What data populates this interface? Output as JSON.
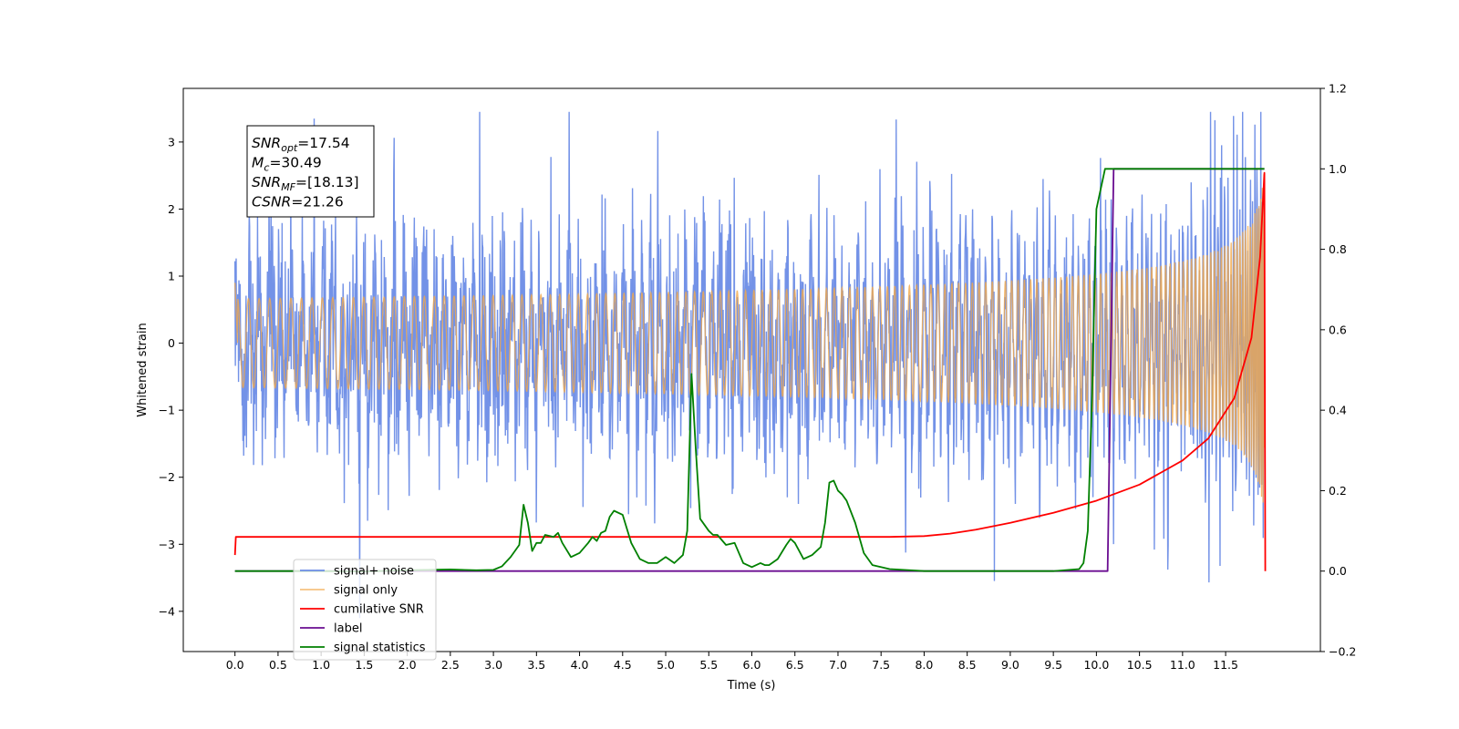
{
  "chart_data": {
    "type": "line",
    "xlabel": "Time (s)",
    "ylabel": "Whitened strain",
    "xlim": [
      -0.6,
      12.6
    ],
    "ylim_left": [
      -4.6,
      3.8
    ],
    "ylim_right": [
      -0.2,
      1.2
    ],
    "x_ticks": [
      0.0,
      0.5,
      1.0,
      1.5,
      2.0,
      2.5,
      3.0,
      3.5,
      4.0,
      4.5,
      5.0,
      5.5,
      6.0,
      6.5,
      7.0,
      7.5,
      8.0,
      8.5,
      9.0,
      9.5,
      10.0,
      10.5,
      11.0,
      11.5
    ],
    "x_tick_labels": [
      "0.0",
      "0.5",
      "1.0",
      "1.5",
      "2.0",
      "2.5",
      "3.0",
      "3.5",
      "4.0",
      "4.5",
      "5.0",
      "5.5",
      "6.0",
      "6.5",
      "7.0",
      "7.5",
      "8.0",
      "8.5",
      "9.0",
      "9.5",
      "10.0",
      "10.5",
      "11.0",
      "11.5"
    ],
    "y_left_ticks": [
      -4,
      -3,
      -2,
      -1,
      0,
      1,
      2,
      3
    ],
    "y_left_tick_labels": [
      "−4",
      "−3",
      "−2",
      "−1",
      "0",
      "1",
      "2",
      "3"
    ],
    "y_right_ticks": [
      -0.2,
      0.0,
      0.2,
      0.4,
      0.6,
      0.8,
      1.0,
      1.2
    ],
    "y_right_tick_labels": [
      "−0.2",
      "0.0",
      "0.2",
      "0.4",
      "0.6",
      "0.8",
      "1.0",
      "1.2"
    ],
    "grid": false,
    "legend_placement": "lower-left",
    "annotation": {
      "lines": [
        {
          "symbol": "SNR",
          "sub": "opt",
          "value": "=17.54"
        },
        {
          "symbol": "M",
          "sub": "c",
          "value": "=30.49"
        },
        {
          "symbol": "SNR",
          "sub": "MF",
          "value": "=[18.13]"
        },
        {
          "symbol": "CSNR",
          "sub": "",
          "value": "=21.26"
        }
      ]
    },
    "series": [
      {
        "name": "signal+ noise",
        "color": "#6b8ce6",
        "axis": "left",
        "kind": "noise",
        "x_range": [
          0.0,
          11.95
        ],
        "sigma": 0.75,
        "envelope_end": 2.6
      },
      {
        "name": "signal only",
        "color": "#f2a94a",
        "axis": "left",
        "kind": "chirp",
        "x_range": [
          0.0,
          11.95
        ],
        "end_amplitude": 2.6
      },
      {
        "name": "cumilative SNR",
        "color": "#ff0000",
        "axis": "right",
        "x": [
          0.0,
          0.01,
          7.6,
          8.0,
          8.3,
          8.6,
          9.0,
          9.5,
          10.0,
          10.5,
          11.0,
          11.3,
          11.6,
          11.8,
          11.9,
          11.95,
          11.96
        ],
        "y": [
          0.04,
          0.085,
          0.085,
          0.087,
          0.093,
          0.103,
          0.12,
          0.145,
          0.175,
          0.215,
          0.275,
          0.33,
          0.43,
          0.58,
          0.78,
          0.99,
          0.0
        ]
      },
      {
        "name": "label",
        "color": "#6a0d91",
        "axis": "right",
        "x": [
          0.0,
          10.13,
          10.2,
          11.95
        ],
        "y": [
          0.0,
          0.0,
          1.0,
          1.0
        ]
      },
      {
        "name": "signal statistics",
        "color": "#008000",
        "axis": "right",
        "x": [
          0.0,
          0.5,
          1.0,
          1.5,
          2.0,
          2.5,
          2.8,
          3.0,
          3.1,
          3.2,
          3.3,
          3.35,
          3.4,
          3.45,
          3.5,
          3.55,
          3.6,
          3.7,
          3.75,
          3.8,
          3.9,
          4.0,
          4.1,
          4.15,
          4.2,
          4.25,
          4.3,
          4.35,
          4.4,
          4.5,
          4.6,
          4.7,
          4.8,
          4.9,
          5.0,
          5.1,
          5.2,
          5.25,
          5.3,
          5.35,
          5.4,
          5.5,
          5.55,
          5.6,
          5.7,
          5.8,
          5.9,
          6.0,
          6.1,
          6.15,
          6.2,
          6.3,
          6.4,
          6.45,
          6.5,
          6.6,
          6.7,
          6.8,
          6.85,
          6.9,
          6.95,
          7.0,
          7.05,
          7.1,
          7.2,
          7.3,
          7.4,
          7.6,
          8.0,
          8.5,
          9.0,
          9.5,
          9.8,
          9.85,
          9.9,
          9.95,
          10.0,
          10.1,
          10.15,
          10.5,
          11.0,
          11.5,
          11.95
        ],
        "y": [
          0.0,
          0.0,
          0.0,
          -0.001,
          0.002,
          0.004,
          0.002,
          0.003,
          0.012,
          0.035,
          0.065,
          0.165,
          0.12,
          0.05,
          0.07,
          0.07,
          0.09,
          0.085,
          0.095,
          0.07,
          0.035,
          0.045,
          0.07,
          0.085,
          0.075,
          0.095,
          0.1,
          0.135,
          0.15,
          0.14,
          0.07,
          0.03,
          0.02,
          0.02,
          0.035,
          0.02,
          0.04,
          0.1,
          0.49,
          0.3,
          0.13,
          0.1,
          0.09,
          0.09,
          0.065,
          0.07,
          0.02,
          0.01,
          0.02,
          0.015,
          0.015,
          0.03,
          0.065,
          0.08,
          0.07,
          0.03,
          0.04,
          0.06,
          0.12,
          0.22,
          0.225,
          0.2,
          0.19,
          0.175,
          0.12,
          0.045,
          0.015,
          0.005,
          0.0,
          0.0,
          0.0,
          0.0,
          0.005,
          0.02,
          0.1,
          0.44,
          0.9,
          1.0,
          1.0,
          1.0,
          1.0,
          1.0,
          1.0
        ]
      }
    ],
    "legend_entries": [
      "signal+ noise",
      "signal only",
      "cumilative SNR",
      "label",
      "signal statistics"
    ]
  }
}
